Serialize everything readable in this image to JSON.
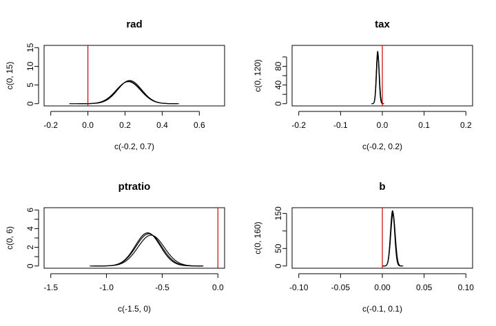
{
  "chart_data": [
    {
      "type": "line",
      "title": "rad",
      "xlabel": "c(-0.2, 0.7)",
      "ylabel": "c(0, 15)",
      "xlim": [
        -0.2,
        0.7
      ],
      "ylim": [
        0,
        15
      ],
      "xticks": [
        -0.2,
        0.0,
        0.2,
        0.4,
        0.6
      ],
      "xtick_labels": [
        "-0.2",
        "0.0",
        "0.2",
        "0.4",
        "0.6"
      ],
      "yticks": [
        0,
        5,
        10,
        15
      ],
      "ytick_labels": [
        "0",
        "5",
        "10",
        "15"
      ],
      "vline": 0,
      "vline_color": "#cc0000",
      "series": [
        {
          "mean": 0.22,
          "sd": 0.065,
          "peak": 6.0,
          "from": -0.1,
          "to": 0.49
        },
        {
          "mean": 0.225,
          "sd": 0.064,
          "peak": 6.2,
          "from": -0.05,
          "to": 0.47
        },
        {
          "mean": 0.218,
          "sd": 0.066,
          "peak": 5.9,
          "from": -0.02,
          "to": 0.48
        }
      ]
    },
    {
      "type": "line",
      "title": "tax",
      "xlabel": "c(-0.2, 0.2)",
      "ylabel": "c(0, 120)",
      "xlim": [
        -0.2,
        0.2
      ],
      "ylim": [
        0,
        120
      ],
      "xticks": [
        -0.2,
        -0.1,
        0.0,
        0.1,
        0.2
      ],
      "xtick_labels": [
        "-0.2",
        "-0.1",
        "0.0",
        "0.1",
        "0.2"
      ],
      "yticks": [
        0,
        40,
        80
      ],
      "ytick_labels": [
        "0",
        "40",
        "80"
      ],
      "yminor": [
        20,
        60,
        100
      ],
      "vline": 0,
      "vline_color": "#cc0000",
      "series": [
        {
          "mean": -0.011,
          "sd": 0.0033,
          "peak": 110,
          "from": -0.025,
          "to": 0.003
        },
        {
          "mean": -0.0105,
          "sd": 0.0034,
          "peak": 104,
          "from": -0.024,
          "to": 0.004
        },
        {
          "mean": -0.0112,
          "sd": 0.0032,
          "peak": 112,
          "from": -0.026,
          "to": 0.002
        }
      ]
    },
    {
      "type": "line",
      "title": "ptratio",
      "xlabel": "c(-1.5, 0)",
      "ylabel": "c(0, 6)",
      "xlim": [
        -1.5,
        0
      ],
      "ylim": [
        0,
        6
      ],
      "xticks": [
        -1.5,
        -1.0,
        -0.5,
        0.0
      ],
      "xtick_labels": [
        "-1.5",
        "-1.0",
        "-0.5",
        "0.0"
      ],
      "yticks": [
        0,
        2,
        4,
        6
      ],
      "ytick_labels": [
        "0",
        "2",
        "4",
        "6"
      ],
      "yminor": [
        1,
        3,
        5
      ],
      "vline": 0,
      "vline_color": "#cc0000",
      "series": [
        {
          "mean": -0.62,
          "sd": 0.115,
          "peak": 3.45,
          "from": -1.15,
          "to": -0.13
        },
        {
          "mean": -0.6,
          "sd": 0.118,
          "peak": 3.3,
          "from": -1.1,
          "to": -0.15
        },
        {
          "mean": -0.63,
          "sd": 0.112,
          "peak": 3.55,
          "from": -1.12,
          "to": -0.14
        }
      ]
    },
    {
      "type": "line",
      "title": "b",
      "xlabel": "c(-0.1, 0.1)",
      "ylabel": "c(0, 160)",
      "xlim": [
        -0.1,
        0.1
      ],
      "ylim": [
        0,
        160
      ],
      "xticks": [
        -0.1,
        -0.05,
        0.0,
        0.05,
        0.1
      ],
      "xtick_labels": [
        "-0.10",
        "-0.05",
        "0.00",
        "0.05",
        "0.10"
      ],
      "yticks": [
        0,
        50,
        150
      ],
      "ytick_labels": [
        "0",
        "50",
        "150"
      ],
      "yminor": [
        100
      ],
      "vline": 0,
      "vline_color": "#cc0000",
      "series": [
        {
          "mean": 0.0125,
          "sd": 0.0026,
          "peak": 155,
          "from": 0.001,
          "to": 0.024
        },
        {
          "mean": 0.0128,
          "sd": 0.0027,
          "peak": 148,
          "from": 0.002,
          "to": 0.025
        },
        {
          "mean": 0.0122,
          "sd": 0.0025,
          "peak": 158,
          "from": 0.0,
          "to": 0.023
        }
      ]
    }
  ]
}
